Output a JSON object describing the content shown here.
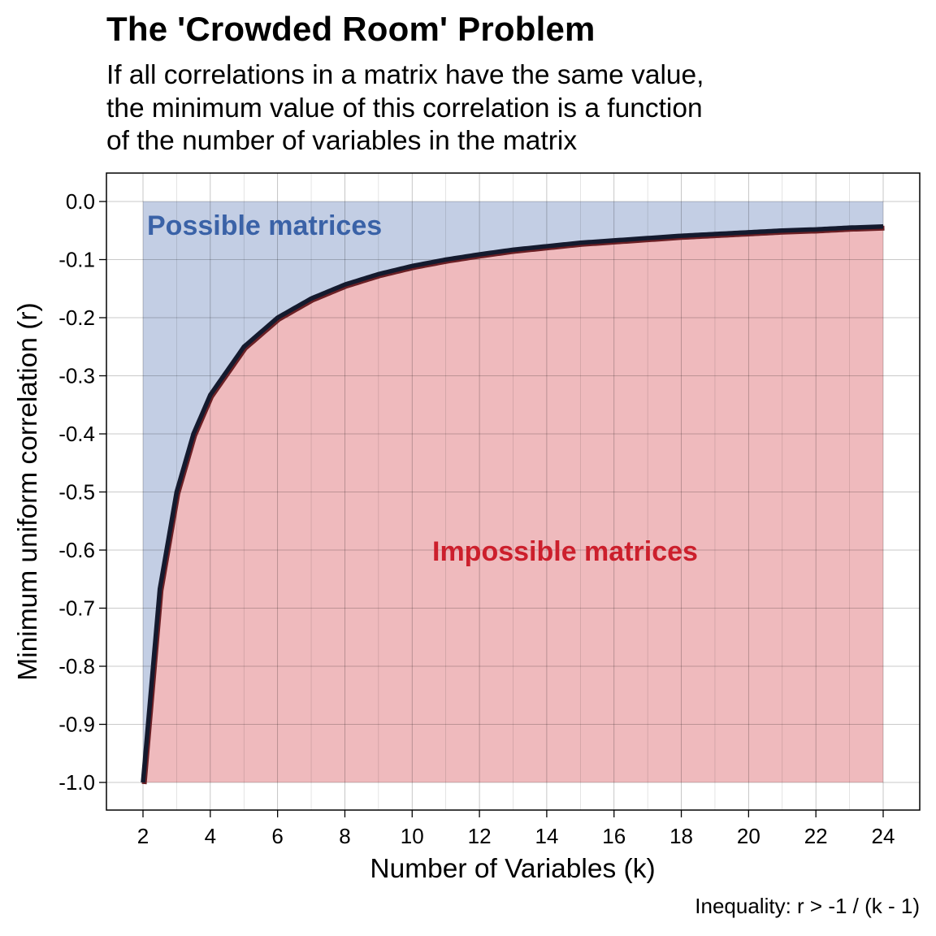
{
  "chart_data": {
    "type": "line",
    "title": "The 'Crowded Room' Problem",
    "subtitle_lines": [
      "If all correlations in a matrix have the same value,",
      "the minimum value of this correlation is a function",
      "of the number of variables in the matrix"
    ],
    "xlabel": "Number of Variables (k)",
    "ylabel": "Minimum uniform correlation (r)",
    "caption": "Inequality: r > -1 / (k - 1)",
    "xlim": [
      2,
      24
    ],
    "ylim": [
      -1.0,
      0.0
    ],
    "x_ticks": [
      "2",
      "4",
      "6",
      "8",
      "10",
      "12",
      "14",
      "16",
      "18",
      "20",
      "22",
      "24"
    ],
    "y_ticks": [
      "0.0",
      "-0.1",
      "-0.2",
      "-0.3",
      "-0.4",
      "-0.5",
      "-0.6",
      "-0.7",
      "-0.8",
      "-0.9",
      "-1.0"
    ],
    "grid": true,
    "series": [
      {
        "x": [
          2,
          2.5,
          3,
          3.5,
          4,
          5,
          6,
          7,
          8,
          9,
          10,
          11,
          12,
          13,
          14,
          15,
          16,
          17,
          18,
          19,
          20,
          21,
          22,
          23,
          24
        ],
        "y": [
          -1.0,
          -0.667,
          -0.5,
          -0.4,
          -0.333,
          -0.25,
          -0.2,
          -0.167,
          -0.143,
          -0.125,
          -0.111,
          -0.1,
          -0.091,
          -0.083,
          -0.077,
          -0.071,
          -0.067,
          -0.063,
          -0.059,
          -0.056,
          -0.053,
          -0.05,
          -0.048,
          -0.045,
          -0.043
        ]
      }
    ],
    "regions": {
      "possible_label": "Possible matrices",
      "impossible_label": "Impossible matrices"
    },
    "colors": {
      "possible_fill": "#c3cee4",
      "impossible_fill": "#efbabd",
      "possible_text": "#3a62a7",
      "impossible_text": "#cc1f2c",
      "curve": "#141a2e",
      "curve_shadow": "#6b1f24"
    }
  }
}
